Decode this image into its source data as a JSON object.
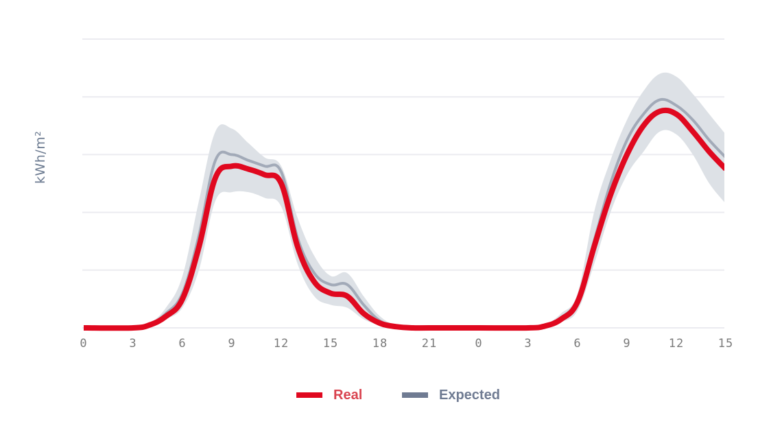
{
  "chart": {
    "ylabel": "kWh/m²",
    "xticks": [
      "0",
      "3",
      "6",
      "9",
      "12",
      "15",
      "18",
      "21",
      "0",
      "3",
      "6",
      "9",
      "12",
      "15"
    ],
    "legend": [
      {
        "label": "Real",
        "color": "#e0081f",
        "text_color": "#d9434f"
      },
      {
        "label": "Expected",
        "color": "#6f7b92",
        "text_color": "#6f7b92"
      }
    ],
    "colors": {
      "real": "#e0081f",
      "expected": "#a2aab8",
      "band": "#dde1e6",
      "grid": "#ebebf0"
    }
  },
  "chart_data": {
    "type": "line",
    "title": "",
    "xlabel": "",
    "ylabel": "kWh/m²",
    "x_hours": [
      0,
      3,
      4,
      5,
      6,
      7,
      8,
      9,
      10,
      11,
      12,
      13,
      14,
      15,
      16,
      17,
      18,
      19,
      20,
      21,
      24,
      27,
      28,
      29,
      30,
      31,
      32,
      33,
      34,
      35,
      36,
      37,
      38,
      39
    ],
    "xtick_labels": [
      "0",
      "3",
      "6",
      "9",
      "12",
      "15",
      "18",
      "21",
      "0",
      "3",
      "6",
      "9",
      "12",
      "15"
    ],
    "ylim": [
      0,
      5
    ],
    "grid": true,
    "legend_position": "bottom",
    "series": [
      {
        "name": "Real",
        "values": [
          0,
          0,
          0.05,
          0.2,
          0.5,
          1.4,
          2.6,
          2.8,
          2.75,
          2.65,
          2.5,
          1.4,
          0.8,
          0.6,
          0.55,
          0.25,
          0.08,
          0.02,
          0,
          0,
          0,
          0,
          0.03,
          0.15,
          0.45,
          1.4,
          2.3,
          3.0,
          3.5,
          3.75,
          3.7,
          3.4,
          3.05,
          2.75
        ]
      },
      {
        "name": "Expected",
        "values": [
          0,
          0,
          0.06,
          0.25,
          0.6,
          1.6,
          2.9,
          3.0,
          2.9,
          2.8,
          2.7,
          1.55,
          0.95,
          0.75,
          0.75,
          0.4,
          0.12,
          0.03,
          0,
          0,
          0,
          0,
          0.04,
          0.18,
          0.5,
          1.5,
          2.5,
          3.25,
          3.7,
          3.95,
          3.85,
          3.6,
          3.25,
          2.95
        ]
      },
      {
        "name": "Expected band upper",
        "values": [
          0,
          0,
          0.08,
          0.35,
          0.9,
          2.2,
          3.4,
          3.45,
          3.2,
          2.95,
          2.8,
          1.9,
          1.25,
          0.9,
          0.95,
          0.55,
          0.2,
          0.04,
          0,
          0,
          0,
          0,
          0.05,
          0.25,
          0.6,
          2.0,
          2.9,
          3.6,
          4.1,
          4.4,
          4.35,
          4.05,
          3.7,
          3.35
        ]
      },
      {
        "name": "Expected band lower",
        "values": [
          0,
          0,
          0.03,
          0.15,
          0.35,
          1.0,
          2.2,
          2.35,
          2.35,
          2.25,
          2.1,
          1.1,
          0.55,
          0.4,
          0.35,
          0.15,
          0.05,
          0.01,
          0,
          0,
          0,
          0,
          0.02,
          0.1,
          0.3,
          1.1,
          2.0,
          2.65,
          3.05,
          3.4,
          3.35,
          3.0,
          2.5,
          2.15
        ]
      }
    ]
  }
}
